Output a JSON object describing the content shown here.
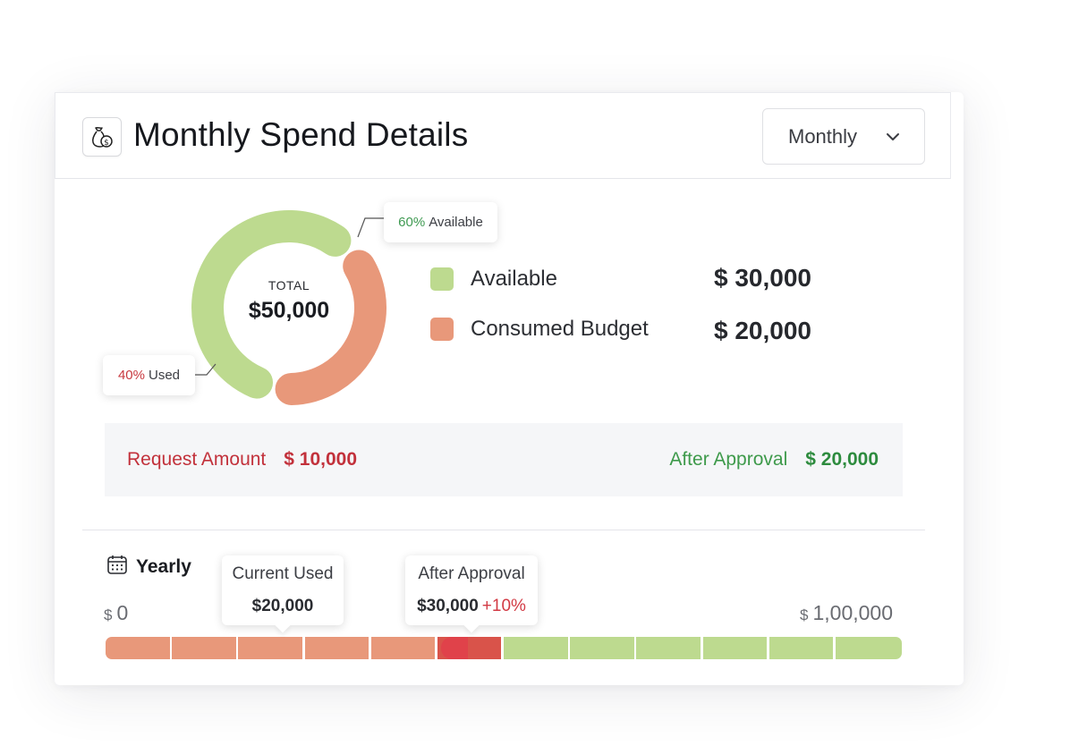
{
  "header": {
    "title": "Monthly Spend Details",
    "icon": "money-bag-icon",
    "period_select": {
      "value": "Monthly"
    }
  },
  "budget": {
    "total_label": "TOTAL",
    "total_value": "$50,000",
    "available_fraction": 0.6,
    "used_fraction": 0.4,
    "tooltip_available": {
      "pct": "60%",
      "label": "Available"
    },
    "tooltip_used": {
      "pct": "40%",
      "label": "Used"
    },
    "legend": [
      {
        "label": "Available",
        "value": "$ 30,000",
        "color": "#bdda8f"
      },
      {
        "label": "Consumed Budget",
        "value": "$ 20,000",
        "color": "#e8987a"
      }
    ]
  },
  "request": {
    "label": "Request Amount",
    "value": "$ 10,000",
    "after_label": "After Approval",
    "after_value": "$ 20,000"
  },
  "yearly": {
    "title": "Yearly",
    "icon": "calendar-icon",
    "min_currency": "$",
    "min_value": "0",
    "max_currency": "$",
    "max_value": "1,00,000",
    "current_used": {
      "title": "Current Used",
      "value": "$20,000"
    },
    "after_approval": {
      "title": "After Approval",
      "value": "$30,000",
      "delta": "+10%"
    },
    "colors": {
      "used": "#e8987a",
      "request": "#d9534a",
      "available": "#bdda8f"
    }
  }
}
